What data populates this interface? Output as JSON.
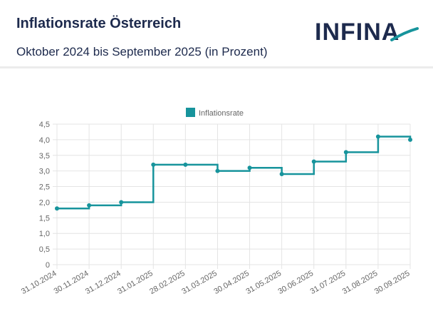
{
  "header": {
    "title": "Inflationsrate Österreich",
    "subtitle": "Oktober 2024 bis September 2025 (in Prozent)",
    "logo_text": "INFINA"
  },
  "colors": {
    "series": "#17949c",
    "title": "#1d2a4d",
    "grid": "#e4e4e4",
    "axis_text": "#666666"
  },
  "chart_data": {
    "type": "line",
    "step": "before",
    "title": "",
    "xlabel": "",
    "ylabel": "",
    "legend_position": "top-center",
    "categories": [
      "31.10.2024",
      "30.11.2024",
      "31.12.2024",
      "31.01.2025",
      "28.02.2025",
      "31.03.2025",
      "30.04.2025",
      "31.05.2025",
      "30.06.2025",
      "31.07.2025",
      "31.08.2025",
      "30.09.2025"
    ],
    "series": [
      {
        "name": "Inflationsrate",
        "values": [
          1.8,
          1.9,
          2.0,
          3.2,
          3.2,
          3.0,
          3.1,
          2.9,
          3.3,
          3.6,
          4.1,
          4.0
        ]
      }
    ],
    "ylim": [
      0,
      4.5
    ],
    "yticks": [
      "0",
      "0,5",
      "1,0",
      "1,5",
      "2,0",
      "2,5",
      "3,0",
      "3,5",
      "4,0",
      "4,5"
    ],
    "grid": true
  }
}
